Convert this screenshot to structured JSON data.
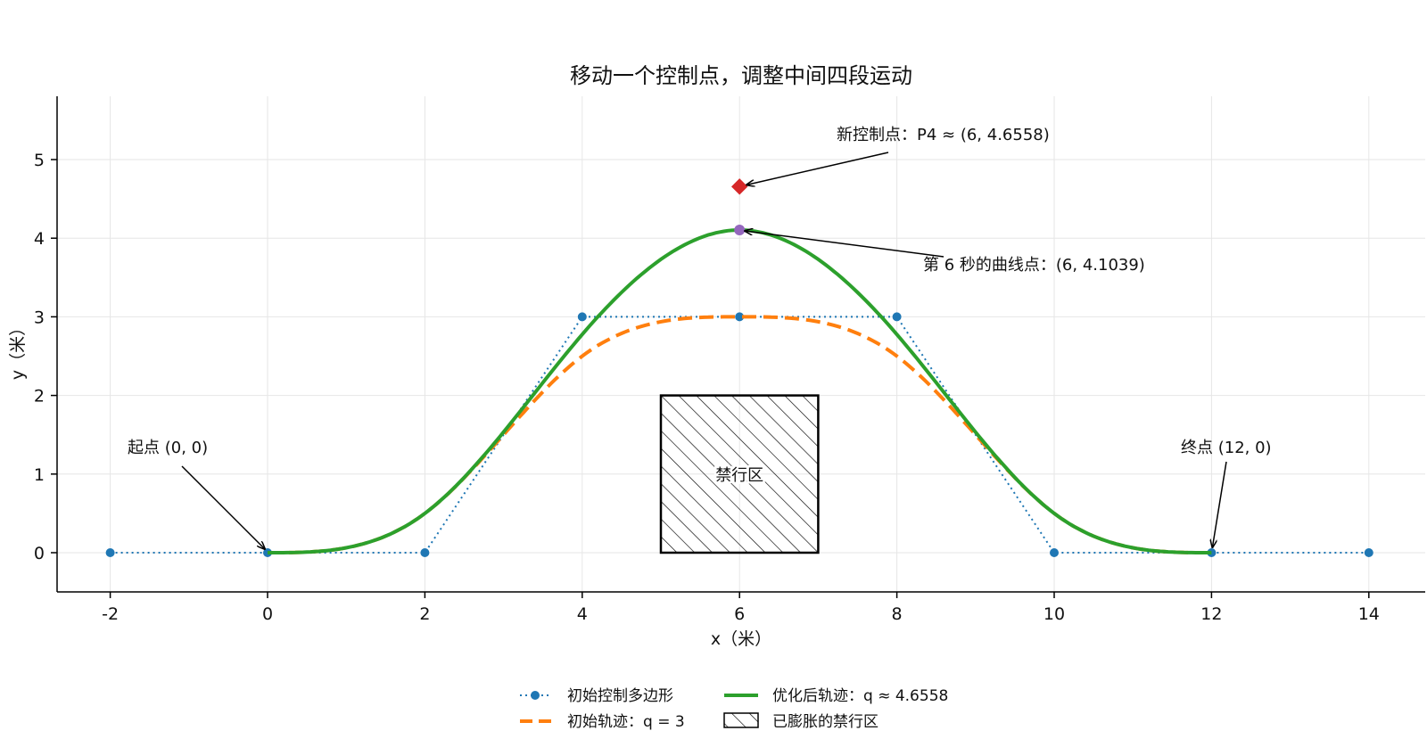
{
  "chart_data": {
    "type": "line",
    "title": "移动一个控制点，调整中间四段运动",
    "xlabel": "x（米）",
    "ylabel": "y（米）",
    "xlim": [
      -2.7,
      14.7
    ],
    "ylim": [
      -0.5,
      5.8
    ],
    "xticks": [
      -2,
      0,
      2,
      4,
      6,
      8,
      10,
      12,
      14
    ],
    "yticks": [
      0,
      1,
      2,
      3,
      4,
      5
    ],
    "grid": true,
    "legend_position": "bottom-center",
    "colors": {
      "control": "#1f77b4",
      "initial": "#ff7f0e",
      "optimized": "#2ca02c",
      "new_point": "#d62728",
      "curve_point": "#9467bd",
      "zone": "#000000"
    },
    "control_polygon": {
      "name": "初始控制多边形",
      "x": [
        -2,
        0,
        2,
        4,
        6,
        8,
        10,
        12,
        14
      ],
      "y": [
        0,
        0,
        0,
        3,
        3,
        3,
        0,
        0,
        0
      ]
    },
    "initial_curve": {
      "name": "初始轨迹：q = 3",
      "q": 3
    },
    "optimized_curve": {
      "name": "优化后轨迹：q ≈ 4.6558",
      "q": 4.6558
    },
    "forbidden_zone": {
      "name": "已膨胀的禁行区",
      "label": "禁行区",
      "x": [
        5,
        7
      ],
      "y": [
        0,
        2
      ]
    },
    "new_control_point": {
      "x": 6,
      "y": 4.6558
    },
    "curve_point": {
      "x": 6,
      "y": 4.1039
    },
    "annotations": {
      "new_point": "新控制点：P4 ≈ (6, 4.6558)",
      "curve_point": "第 6 秒的曲线点：(6, 4.1039)",
      "start": "起点 (0, 0)",
      "end": "终点 (12, 0)"
    }
  }
}
